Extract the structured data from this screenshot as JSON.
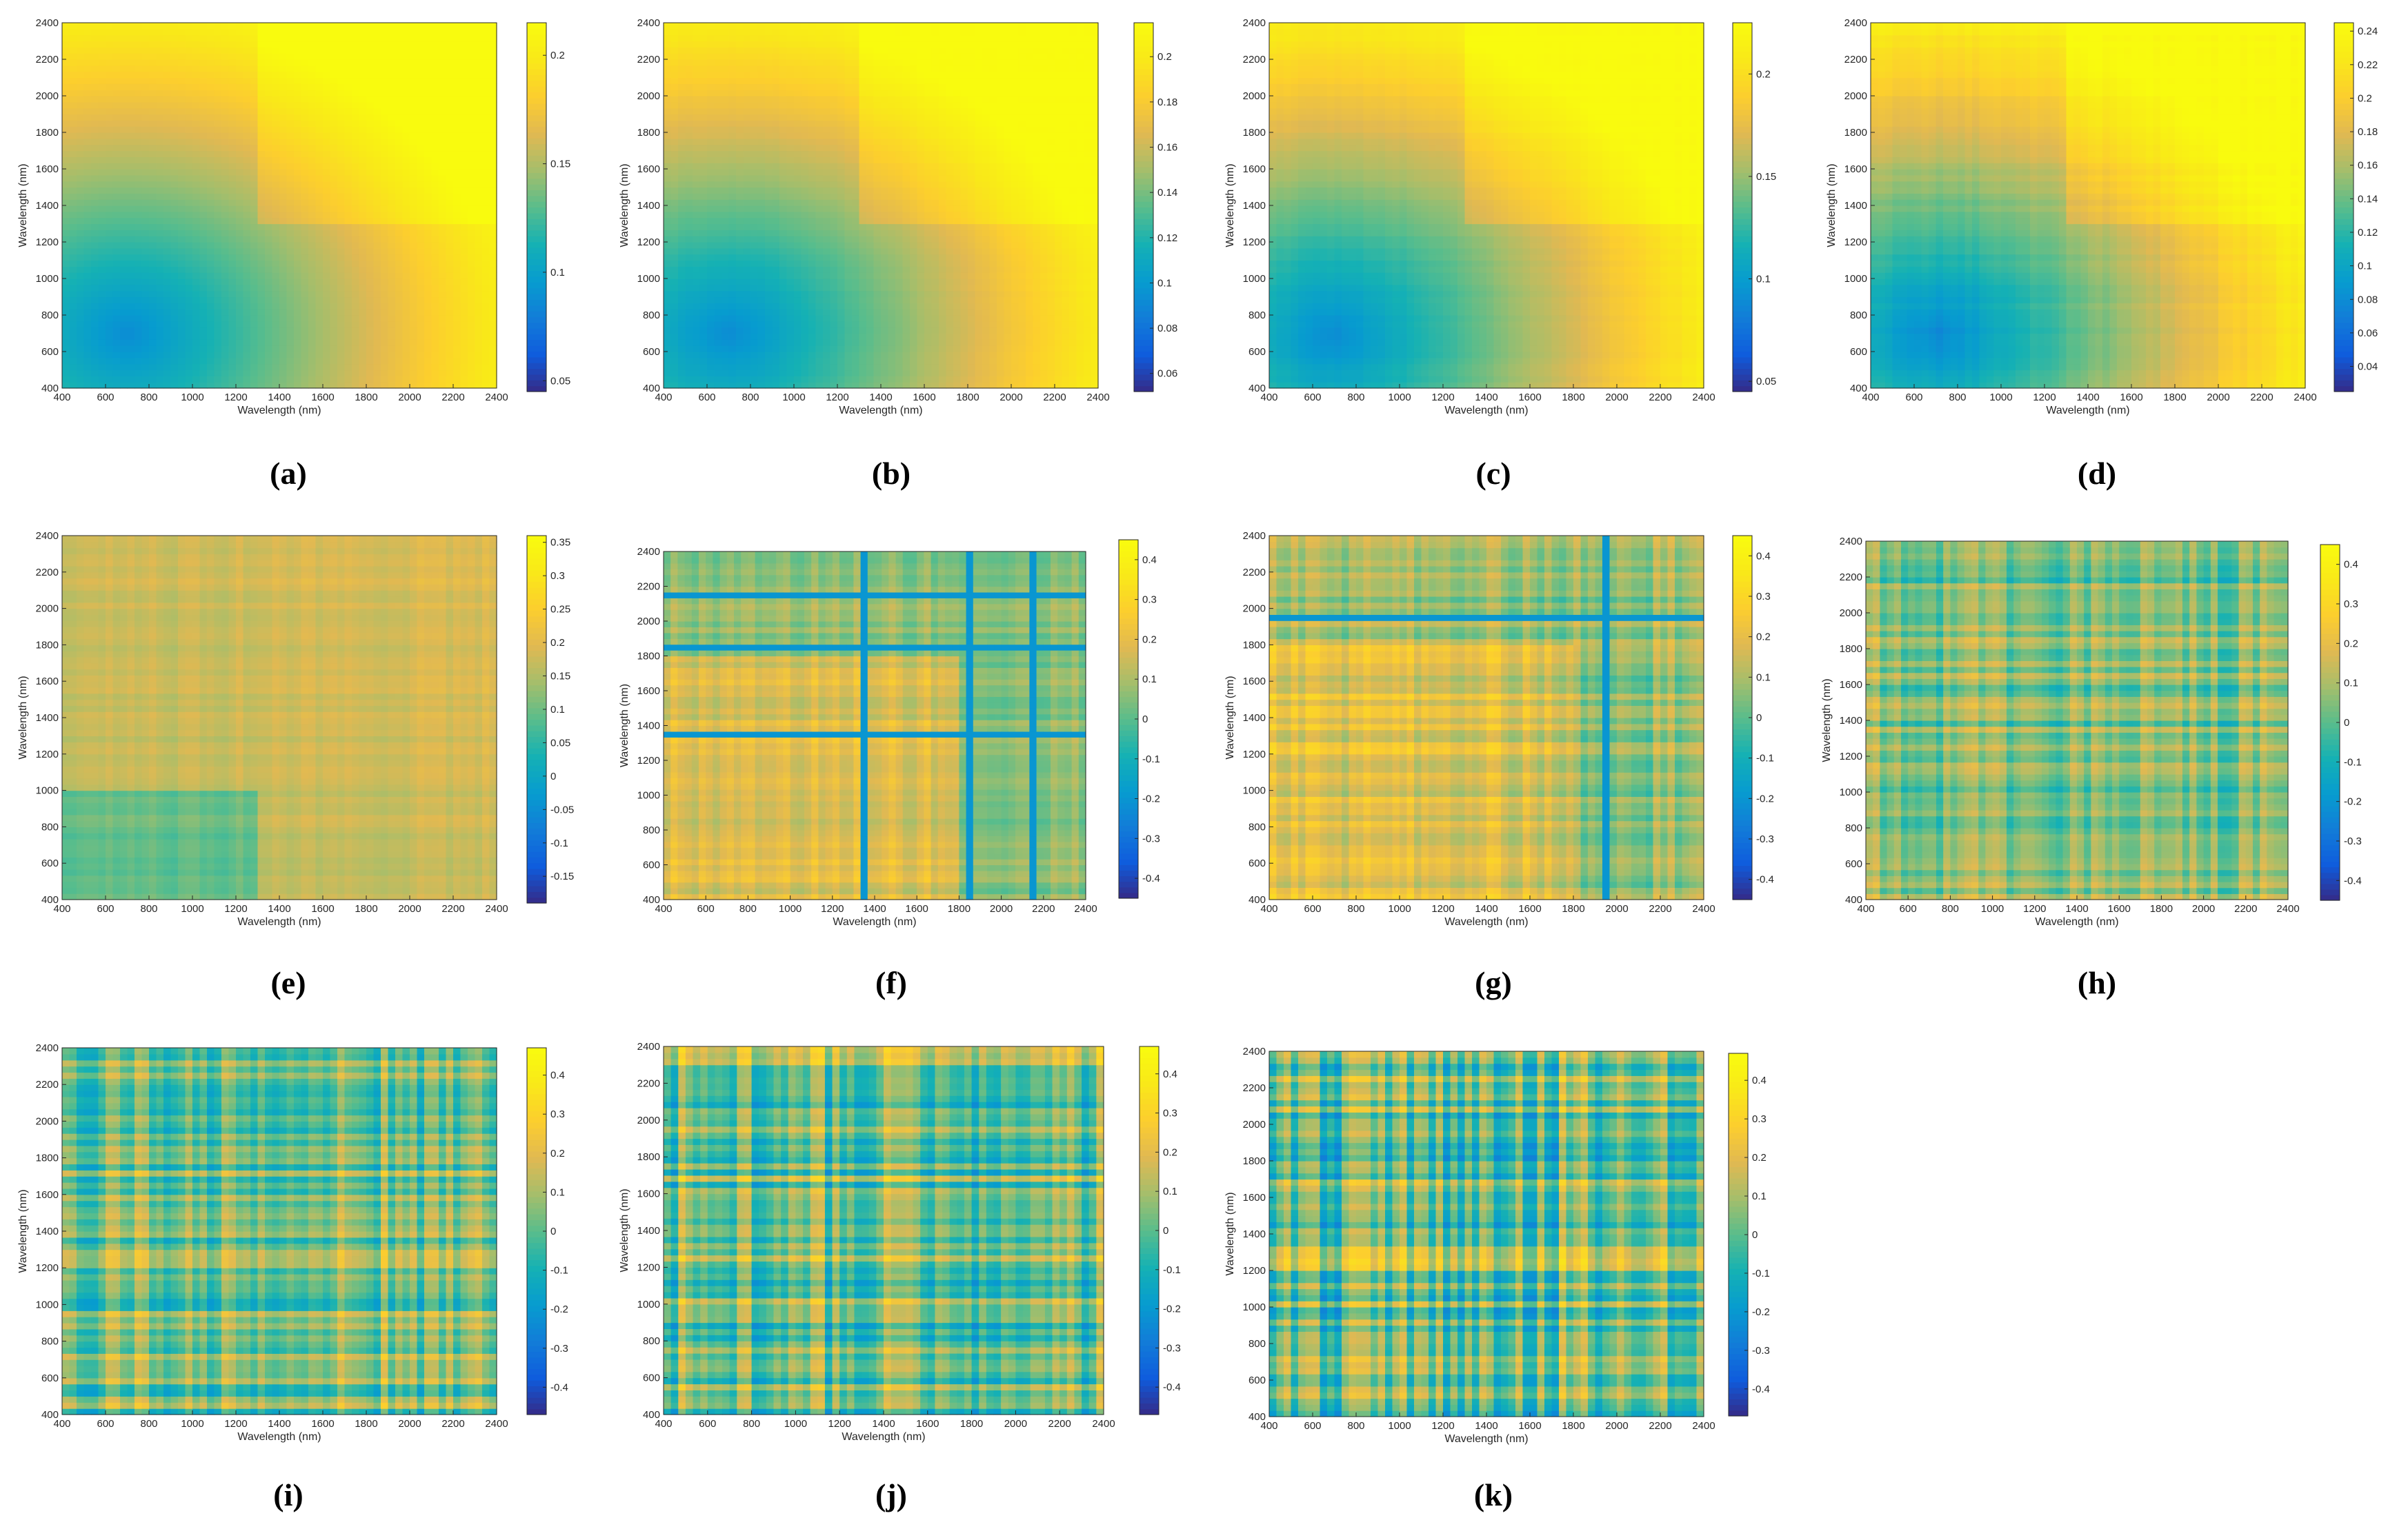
{
  "figure": {
    "caption_note": "",
    "colormap": "parula"
  },
  "chart_data": [
    {
      "id": "a",
      "label": "(a)",
      "type": "heatmap",
      "xlabel": "Wavelength (nm)",
      "ylabel": "Wavelength (nm)",
      "xlim": [
        400,
        2400
      ],
      "ylim": [
        400,
        2400
      ],
      "xticks": [
        400,
        600,
        800,
        1000,
        1200,
        1400,
        1600,
        1800,
        2000,
        2200,
        2400
      ],
      "yticks": [
        400,
        600,
        800,
        1000,
        1200,
        1400,
        1600,
        1800,
        2000,
        2200,
        2400
      ],
      "colorbar_range": [
        0.045,
        0.215
      ],
      "colorbar_ticks": [
        "0.05",
        "0.1",
        "0.15",
        "0.2"
      ],
      "colorbar_tick_values": [
        0.05,
        0.1,
        0.15,
        0.2
      ],
      "pattern": "smooth",
      "noise_level": 0,
      "bands": []
    },
    {
      "id": "b",
      "label": "(b)",
      "type": "heatmap",
      "xlabel": "Wavelength (nm)",
      "ylabel": "Wavelength (nm)",
      "xlim": [
        400,
        2400
      ],
      "ylim": [
        400,
        2400
      ],
      "xticks": [
        400,
        600,
        800,
        1000,
        1200,
        1400,
        1600,
        1800,
        2000,
        2200,
        2400
      ],
      "yticks": [
        400,
        600,
        800,
        1000,
        1200,
        1400,
        1600,
        1800,
        2000,
        2200,
        2400
      ],
      "colorbar_range": [
        0.052,
        0.215
      ],
      "colorbar_ticks": [
        "0.06",
        "0.08",
        "0.1",
        "0.12",
        "0.14",
        "0.16",
        "0.18",
        "0.2"
      ],
      "colorbar_tick_values": [
        0.06,
        0.08,
        0.1,
        0.12,
        0.14,
        0.16,
        0.18,
        0.2
      ],
      "pattern": "smooth",
      "noise_level": 0.03,
      "bands": [
        1900
      ]
    },
    {
      "id": "c",
      "label": "(c)",
      "type": "heatmap",
      "xlabel": "Wavelength (nm)",
      "ylabel": "Wavelength (nm)",
      "xlim": [
        400,
        2400
      ],
      "ylim": [
        400,
        2400
      ],
      "xticks": [
        400,
        600,
        800,
        1000,
        1200,
        1400,
        1600,
        1800,
        2000,
        2200,
        2400
      ],
      "yticks": [
        400,
        600,
        800,
        1000,
        1200,
        1400,
        1600,
        1800,
        2000,
        2200,
        2400
      ],
      "colorbar_range": [
        0.045,
        0.225
      ],
      "colorbar_ticks": [
        "0.05",
        "0.1",
        "0.15",
        "0.2"
      ],
      "colorbar_tick_values": [
        0.05,
        0.1,
        0.15,
        0.2
      ],
      "pattern": "smooth",
      "noise_level": 0.05,
      "bands": [
        1400,
        1900,
        2300
      ]
    },
    {
      "id": "d",
      "label": "(d)",
      "type": "heatmap",
      "xlabel": "Wavelength (nm)",
      "ylabel": "Wavelength (nm)",
      "xlim": [
        400,
        2400
      ],
      "ylim": [
        400,
        2400
      ],
      "xticks": [
        400,
        600,
        800,
        1000,
        1200,
        1400,
        1600,
        1800,
        2000,
        2200,
        2400
      ],
      "yticks": [
        400,
        600,
        800,
        1000,
        1200,
        1400,
        1600,
        1800,
        2000,
        2200,
        2400
      ],
      "colorbar_range": [
        0.025,
        0.245
      ],
      "colorbar_ticks": [
        "0.04",
        "0.06",
        "0.08",
        "0.1",
        "0.12",
        "0.14",
        "0.16",
        "0.18",
        "0.2",
        "0.22",
        "0.24"
      ],
      "colorbar_tick_values": [
        0.04,
        0.06,
        0.08,
        0.1,
        0.12,
        0.14,
        0.16,
        0.18,
        0.2,
        0.22,
        0.24
      ],
      "pattern": "blocky",
      "noise_level": 0.1,
      "bands": [
        1400,
        1900,
        2300
      ]
    },
    {
      "id": "e",
      "label": "(e)",
      "type": "heatmap",
      "xlabel": "Wavelength (nm)",
      "ylabel": "Wavelength (nm)",
      "xlim": [
        400,
        2400
      ],
      "ylim": [
        400,
        2400
      ],
      "xticks": [
        400,
        600,
        800,
        1000,
        1200,
        1400,
        1600,
        1800,
        2000,
        2200,
        2400
      ],
      "yticks": [
        400,
        600,
        800,
        1000,
        1200,
        1400,
        1600,
        1800,
        2000,
        2200,
        2400
      ],
      "colorbar_range": [
        -0.19,
        0.36
      ],
      "colorbar_ticks": [
        "-0.15",
        "-0.1",
        "-0.05",
        "0",
        "0.05",
        "0.1",
        "0.15",
        "0.2",
        "0.25",
        "0.3",
        "0.35"
      ],
      "colorbar_tick_values": [
        -0.15,
        -0.1,
        -0.05,
        0,
        0.05,
        0.1,
        0.15,
        0.2,
        0.25,
        0.3,
        0.35
      ],
      "pattern": "bands",
      "noise_level": 0.15,
      "bands": [
        1400,
        1900,
        2300
      ]
    },
    {
      "id": "f",
      "label": "(f)",
      "type": "heatmap",
      "xlabel": "Wavelength (nm)",
      "ylabel": "Wavelength (nm)",
      "xlim": [
        400,
        2400
      ],
      "ylim": [
        400,
        2400
      ],
      "xticks": [
        400,
        600,
        800,
        1000,
        1200,
        1400,
        1600,
        1800,
        2000,
        2200,
        2400
      ],
      "yticks": [
        400,
        600,
        800,
        1000,
        1200,
        1400,
        1600,
        1800,
        2000,
        2200,
        2400
      ],
      "colorbar_range": [
        -0.45,
        0.45
      ],
      "colorbar_ticks": [
        "-0.4",
        "-0.3",
        "-0.2",
        "-0.1",
        "0",
        "0.1",
        "0.2",
        "0.3",
        "0.4"
      ],
      "colorbar_tick_values": [
        -0.4,
        -0.3,
        -0.2,
        -0.1,
        0,
        0.1,
        0.2,
        0.3,
        0.4
      ],
      "pattern": "striped",
      "noise_level": 0.3,
      "bands": [
        1350,
        1400,
        1850,
        1900,
        2150,
        2200
      ]
    },
    {
      "id": "g",
      "label": "(g)",
      "type": "heatmap",
      "xlabel": "Wavelength (nm)",
      "ylabel": "Wavelength (nm)",
      "xlim": [
        400,
        2400
      ],
      "ylim": [
        400,
        2400
      ],
      "xticks": [
        400,
        600,
        800,
        1000,
        1200,
        1400,
        1600,
        1800,
        2000,
        2200,
        2400
      ],
      "yticks": [
        400,
        600,
        800,
        1000,
        1200,
        1400,
        1600,
        1800,
        2000,
        2200,
        2400
      ],
      "colorbar_range": [
        -0.45,
        0.45
      ],
      "colorbar_ticks": [
        "-0.4",
        "-0.3",
        "-0.2",
        "-0.1",
        "0",
        "0.1",
        "0.2",
        "0.3",
        "0.4"
      ],
      "colorbar_tick_values": [
        -0.4,
        -0.3,
        -0.2,
        -0.1,
        0,
        0.1,
        0.2,
        0.3,
        0.4
      ],
      "pattern": "striped",
      "noise_level": 0.45,
      "bands": [
        1400,
        1900,
        1950,
        2200
      ]
    },
    {
      "id": "h",
      "label": "(h)",
      "type": "heatmap",
      "xlabel": "Wavelength (nm)",
      "ylabel": "Wavelength (nm)",
      "xlim": [
        400,
        2400
      ],
      "ylim": [
        400,
        2400
      ],
      "xticks": [
        400,
        600,
        800,
        1000,
        1200,
        1400,
        1600,
        1800,
        2000,
        2200,
        2400
      ],
      "yticks": [
        400,
        600,
        800,
        1000,
        1200,
        1400,
        1600,
        1800,
        2000,
        2200,
        2400
      ],
      "colorbar_range": [
        -0.45,
        0.45
      ],
      "colorbar_ticks": [
        "-0.4",
        "-0.3",
        "-0.2",
        "-0.1",
        "0",
        "0.1",
        "0.2",
        "0.3",
        "0.4"
      ],
      "colorbar_tick_values": [
        -0.4,
        -0.3,
        -0.2,
        -0.1,
        0,
        0.1,
        0.2,
        0.3,
        0.4
      ],
      "pattern": "noise",
      "noise_level": 0.6,
      "bands": [
        1400,
        1900,
        2200
      ]
    },
    {
      "id": "i",
      "label": "(i)",
      "type": "heatmap",
      "xlabel": "Wavelength (nm)",
      "ylabel": "Wavelength (nm)",
      "xlim": [
        400,
        2400
      ],
      "ylim": [
        400,
        2400
      ],
      "xticks": [
        400,
        600,
        800,
        1000,
        1200,
        1400,
        1600,
        1800,
        2000,
        2200,
        2400
      ],
      "yticks": [
        400,
        600,
        800,
        1000,
        1200,
        1400,
        1600,
        1800,
        2000,
        2200,
        2400
      ],
      "colorbar_range": [
        -0.47,
        0.47
      ],
      "colorbar_ticks": [
        "-0.4",
        "-0.3",
        "-0.2",
        "-0.1",
        "0",
        "0.1",
        "0.2",
        "0.3",
        "0.4"
      ],
      "colorbar_tick_values": [
        -0.4,
        -0.3,
        -0.2,
        -0.1,
        0,
        0.1,
        0.2,
        0.3,
        0.4
      ],
      "pattern": "noise",
      "noise_level": 0.75,
      "bands": [
        1400,
        1900,
        2200
      ]
    },
    {
      "id": "j",
      "label": "(j)",
      "type": "heatmap",
      "xlabel": "Wavelength (nm)",
      "ylabel": "Wavelength (nm)",
      "xlim": [
        400,
        2400
      ],
      "ylim": [
        400,
        2400
      ],
      "xticks": [
        400,
        600,
        800,
        1000,
        1200,
        1400,
        1600,
        1800,
        2000,
        2200,
        2400
      ],
      "yticks": [
        400,
        600,
        800,
        1000,
        1200,
        1400,
        1600,
        1800,
        2000,
        2200,
        2400
      ],
      "colorbar_range": [
        -0.47,
        0.47
      ],
      "colorbar_ticks": [
        "-0.4",
        "-0.3",
        "-0.2",
        "-0.1",
        "0",
        "0.1",
        "0.2",
        "0.3",
        "0.4"
      ],
      "colorbar_tick_values": [
        -0.4,
        -0.3,
        -0.2,
        -0.1,
        0,
        0.1,
        0.2,
        0.3,
        0.4
      ],
      "pattern": "noise",
      "noise_level": 0.9,
      "bands": [
        1900
      ]
    },
    {
      "id": "k",
      "label": "(k)",
      "type": "heatmap",
      "xlabel": "Wavelength (nm)",
      "ylabel": "Wavelength (nm)",
      "xlim": [
        400,
        2400
      ],
      "ylim": [
        400,
        2400
      ],
      "xticks": [
        400,
        600,
        800,
        1000,
        1200,
        1400,
        1600,
        1800,
        2000,
        2200,
        2400
      ],
      "yticks": [
        400,
        600,
        800,
        1000,
        1200,
        1400,
        1600,
        1800,
        2000,
        2200,
        2400
      ],
      "colorbar_range": [
        -0.47,
        0.47
      ],
      "colorbar_ticks": [
        "-0.4",
        "-0.3",
        "-0.2",
        "-0.1",
        "0",
        "0.1",
        "0.2",
        "0.3",
        "0.4"
      ],
      "colorbar_tick_values": [
        -0.4,
        -0.3,
        -0.2,
        -0.1,
        0,
        0.1,
        0.2,
        0.3,
        0.4
      ],
      "pattern": "noise",
      "noise_level": 1.0,
      "bands": [
        1900
      ]
    }
  ]
}
